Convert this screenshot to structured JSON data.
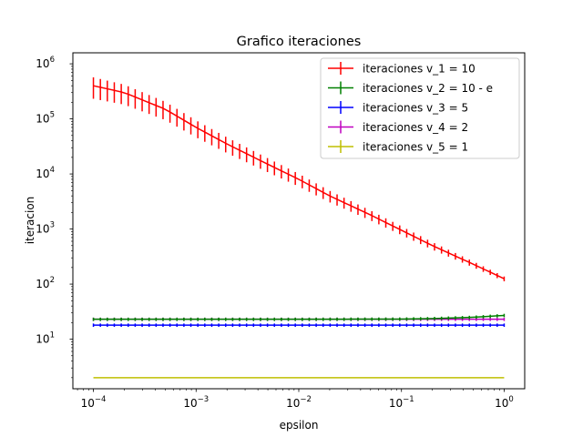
{
  "chart_data": {
    "type": "line",
    "title": "Grafico iteraciones",
    "xlabel": "epsilon",
    "ylabel": "iteracion",
    "xscale": "log",
    "yscale": "log",
    "xlim": [
      6.31e-05,
      1.585
    ],
    "ylim": [
      1.259,
      1585000
    ],
    "grid": false,
    "legend_position": "top-right",
    "x_ticks": [
      {
        "value": 0.0001,
        "base": "10",
        "exp": "−4"
      },
      {
        "value": 0.001,
        "base": "10",
        "exp": "−3"
      },
      {
        "value": 0.01,
        "base": "10",
        "exp": "−2"
      },
      {
        "value": 0.1,
        "base": "10",
        "exp": "−1"
      },
      {
        "value": 1,
        "base": "10",
        "exp": "0"
      }
    ],
    "y_ticks": [
      {
        "value": 10,
        "base": "10",
        "exp": "1"
      },
      {
        "value": 100,
        "base": "10",
        "exp": "2"
      },
      {
        "value": 1000,
        "base": "10",
        "exp": "3"
      },
      {
        "value": 10000,
        "base": "10",
        "exp": "4"
      },
      {
        "value": 100000,
        "base": "10",
        "exp": "5"
      },
      {
        "value": 1000000,
        "base": "10",
        "exp": "6"
      }
    ],
    "series": [
      {
        "name": "iteraciones v_1 = 10",
        "color": "#ff0000",
        "x": [
          0.0001,
          0.0002,
          0.0005,
          0.001,
          0.002,
          0.005,
          0.01,
          0.02,
          0.05,
          0.1,
          0.2,
          0.5,
          1
        ],
        "y": [
          400000,
          300000,
          150000,
          70000,
          35000,
          15000,
          8000,
          4000,
          1800,
          950,
          500,
          230,
          125
        ],
        "error": "large at low epsilon (about ±40%), shrinking toward epsilon = 1"
      },
      {
        "name": "iteraciones v_2 = 10 - e",
        "color": "#008000",
        "x": [
          0.0001,
          0.001,
          0.01,
          0.1,
          0.2,
          0.5,
          1
        ],
        "y": [
          23,
          23,
          23,
          23.2,
          23.7,
          25,
          27
        ]
      },
      {
        "name": "iteraciones v_3 = 5",
        "color": "#0000ff",
        "x": [
          0.0001,
          0.001,
          0.01,
          0.1,
          1
        ],
        "y": [
          18,
          18,
          18,
          18,
          18
        ]
      },
      {
        "name": "iteraciones v_4 = 2",
        "color": "#bf00bf",
        "x": [
          0.0001,
          0.001,
          0.01,
          0.1,
          1
        ],
        "y": [
          23,
          23,
          23,
          23,
          23
        ]
      },
      {
        "name": "iteraciones v_5 = 1",
        "color": "#bfbf00",
        "x": [
          0.0001,
          0.001,
          0.01,
          0.1,
          1
        ],
        "y": [
          2,
          2,
          2,
          2,
          2
        ]
      }
    ]
  }
}
